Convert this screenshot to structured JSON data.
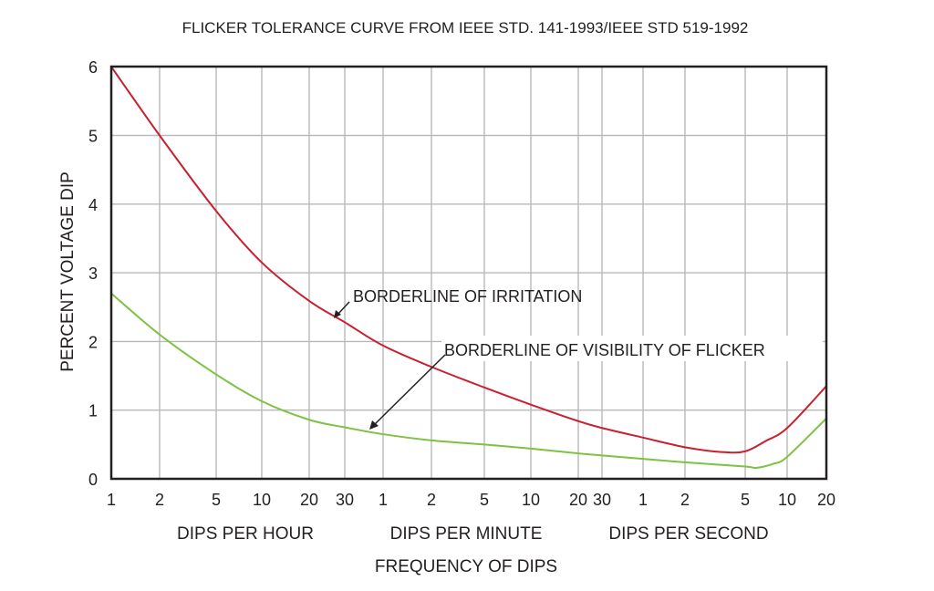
{
  "chart_data": {
    "type": "line",
    "title": "FLICKER TOLERANCE CURVE FROM IEEE STD. 141-1993/IEEE STD 519-1992",
    "xlabel": "FREQUENCY OF DIPS",
    "ylabel": "PERCENT VOLTAGE DIP",
    "x_scale": "log",
    "x_groups": [
      {
        "label": "DIPS PER HOUR",
        "unit": "hour",
        "ticks": [
          "1",
          "2",
          "5",
          "10",
          "20",
          "30"
        ]
      },
      {
        "label": "DIPS PER MINUTE",
        "unit": "minute",
        "ticks": [
          "1",
          "2",
          "5",
          "10",
          "20",
          "30"
        ]
      },
      {
        "label": "DIPS PER SECOND",
        "unit": "second",
        "ticks": [
          "1",
          "2",
          "5",
          "10",
          "20"
        ]
      }
    ],
    "y_ticks": [
      "0",
      "1",
      "2",
      "3",
      "4",
      "5",
      "6"
    ],
    "ylim": [
      0,
      6
    ],
    "grid": true,
    "series": [
      {
        "name": "BORDERLINE OF IRRITATION",
        "color": "#c8202f",
        "points": [
          {
            "x": 1,
            "unit": "hour",
            "y": 6.0
          },
          {
            "x": 2,
            "unit": "hour",
            "y": 5.0
          },
          {
            "x": 5,
            "unit": "hour",
            "y": 3.9
          },
          {
            "x": 10,
            "unit": "hour",
            "y": 3.15
          },
          {
            "x": 20,
            "unit": "hour",
            "y": 2.59
          },
          {
            "x": 30,
            "unit": "hour",
            "y": 2.28
          },
          {
            "x": 1,
            "unit": "minute",
            "y": 1.94
          },
          {
            "x": 2,
            "unit": "minute",
            "y": 1.63
          },
          {
            "x": 5,
            "unit": "minute",
            "y": 1.33
          },
          {
            "x": 10,
            "unit": "minute",
            "y": 1.08
          },
          {
            "x": 20,
            "unit": "minute",
            "y": 0.84
          },
          {
            "x": 30,
            "unit": "minute",
            "y": 0.74
          },
          {
            "x": 1,
            "unit": "second",
            "y": 0.6
          },
          {
            "x": 2,
            "unit": "second",
            "y": 0.46
          },
          {
            "x": 3.5,
            "unit": "second",
            "y": 0.39
          },
          {
            "x": 5,
            "unit": "second",
            "y": 0.4
          },
          {
            "x": 7,
            "unit": "second",
            "y": 0.55
          },
          {
            "x": 10,
            "unit": "second",
            "y": 0.74
          },
          {
            "x": 20,
            "unit": "second",
            "y": 1.35
          }
        ]
      },
      {
        "name": "BORDERLINE OF VISIBILITY OF FLICKER",
        "color": "#7dc242",
        "points": [
          {
            "x": 1,
            "unit": "hour",
            "y": 2.7
          },
          {
            "x": 2,
            "unit": "hour",
            "y": 2.1
          },
          {
            "x": 5,
            "unit": "hour",
            "y": 1.52
          },
          {
            "x": 10,
            "unit": "hour",
            "y": 1.13
          },
          {
            "x": 20,
            "unit": "hour",
            "y": 0.86
          },
          {
            "x": 30,
            "unit": "hour",
            "y": 0.75
          },
          {
            "x": 1,
            "unit": "minute",
            "y": 0.65
          },
          {
            "x": 2,
            "unit": "minute",
            "y": 0.56
          },
          {
            "x": 5,
            "unit": "minute",
            "y": 0.5
          },
          {
            "x": 10,
            "unit": "minute",
            "y": 0.44
          },
          {
            "x": 20,
            "unit": "minute",
            "y": 0.37
          },
          {
            "x": 30,
            "unit": "minute",
            "y": 0.34
          },
          {
            "x": 1,
            "unit": "second",
            "y": 0.29
          },
          {
            "x": 2,
            "unit": "second",
            "y": 0.24
          },
          {
            "x": 5,
            "unit": "second",
            "y": 0.18
          },
          {
            "x": 6,
            "unit": "second",
            "y": 0.16
          },
          {
            "x": 8,
            "unit": "second",
            "y": 0.22
          },
          {
            "x": 10,
            "unit": "second",
            "y": 0.32
          },
          {
            "x": 20,
            "unit": "second",
            "y": 0.88
          }
        ]
      }
    ]
  }
}
